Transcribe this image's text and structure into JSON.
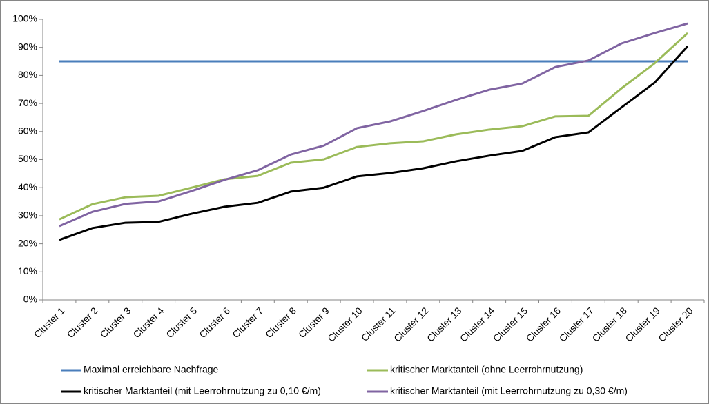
{
  "chart_data": {
    "type": "line",
    "categories": [
      "Cluster 1",
      "Cluster 2",
      "Cluster 3",
      "Cluster 4",
      "Cluster 5",
      "Cluster 6",
      "Cluster 7",
      "Cluster 8",
      "Cluster 9",
      "Cluster 10",
      "Cluster 11",
      "Cluster 12",
      "Cluster 13",
      "Cluster 14",
      "Cluster 15",
      "Cluster 16",
      "Cluster 17",
      "Cluster 18",
      "Cluster 19",
      "Cluster 20"
    ],
    "series": [
      {
        "name": "Maximal erreichbare Nachfrage",
        "color": "#4a7ebb",
        "values": [
          85,
          85,
          85,
          85,
          85,
          85,
          85,
          85,
          85,
          85,
          85,
          85,
          85,
          85,
          85,
          85,
          85,
          85,
          85,
          85
        ]
      },
      {
        "name": "kritischer Marktanteil (ohne Leerrohrnutzung)",
        "color": "#9bbb59",
        "values": [
          28.7,
          34.1,
          36.6,
          37.1,
          40,
          43,
          44.2,
          48.9,
          50.1,
          54.5,
          55.8,
          56.5,
          59,
          60.7,
          61.9,
          65.4,
          65.6,
          75.4,
          84.3,
          95.1
        ]
      },
      {
        "name": "kritischer Marktanteil (mit Leerrohrnutzung zu 0,10 €/m)",
        "color": "#000000",
        "values": [
          21.4,
          25.6,
          27.5,
          27.8,
          30.7,
          33.2,
          34.6,
          38.6,
          40,
          44,
          45.2,
          46.9,
          49.4,
          51.4,
          53.1,
          58,
          59.7,
          68.6,
          77.4,
          90.4
        ]
      },
      {
        "name": "kritischer Marktanteil (mit Leerrohrnutzung zu 0,30 €/m)",
        "color": "#8064a2",
        "values": [
          26.3,
          31.4,
          34.2,
          35.1,
          38.8,
          42.8,
          46.2,
          51.8,
          55,
          61.2,
          63.6,
          67.3,
          71.3,
          74.9,
          77.1,
          83,
          85.3,
          91.4,
          95.1,
          98.5
        ]
      }
    ],
    "ylim": [
      0,
      100
    ],
    "yticks": [
      {
        "value": 0,
        "label": "0%"
      },
      {
        "value": 10,
        "label": "10%"
      },
      {
        "value": 20,
        "label": "20%"
      },
      {
        "value": 30,
        "label": "30%"
      },
      {
        "value": 40,
        "label": "40%"
      },
      {
        "value": 50,
        "label": "50%"
      },
      {
        "value": 60,
        "label": "60%"
      },
      {
        "value": 70,
        "label": "70%"
      },
      {
        "value": 80,
        "label": "80%"
      },
      {
        "value": 90,
        "label": "90%"
      },
      {
        "value": 100,
        "label": "100%"
      }
    ],
    "legend": "bottom"
  }
}
